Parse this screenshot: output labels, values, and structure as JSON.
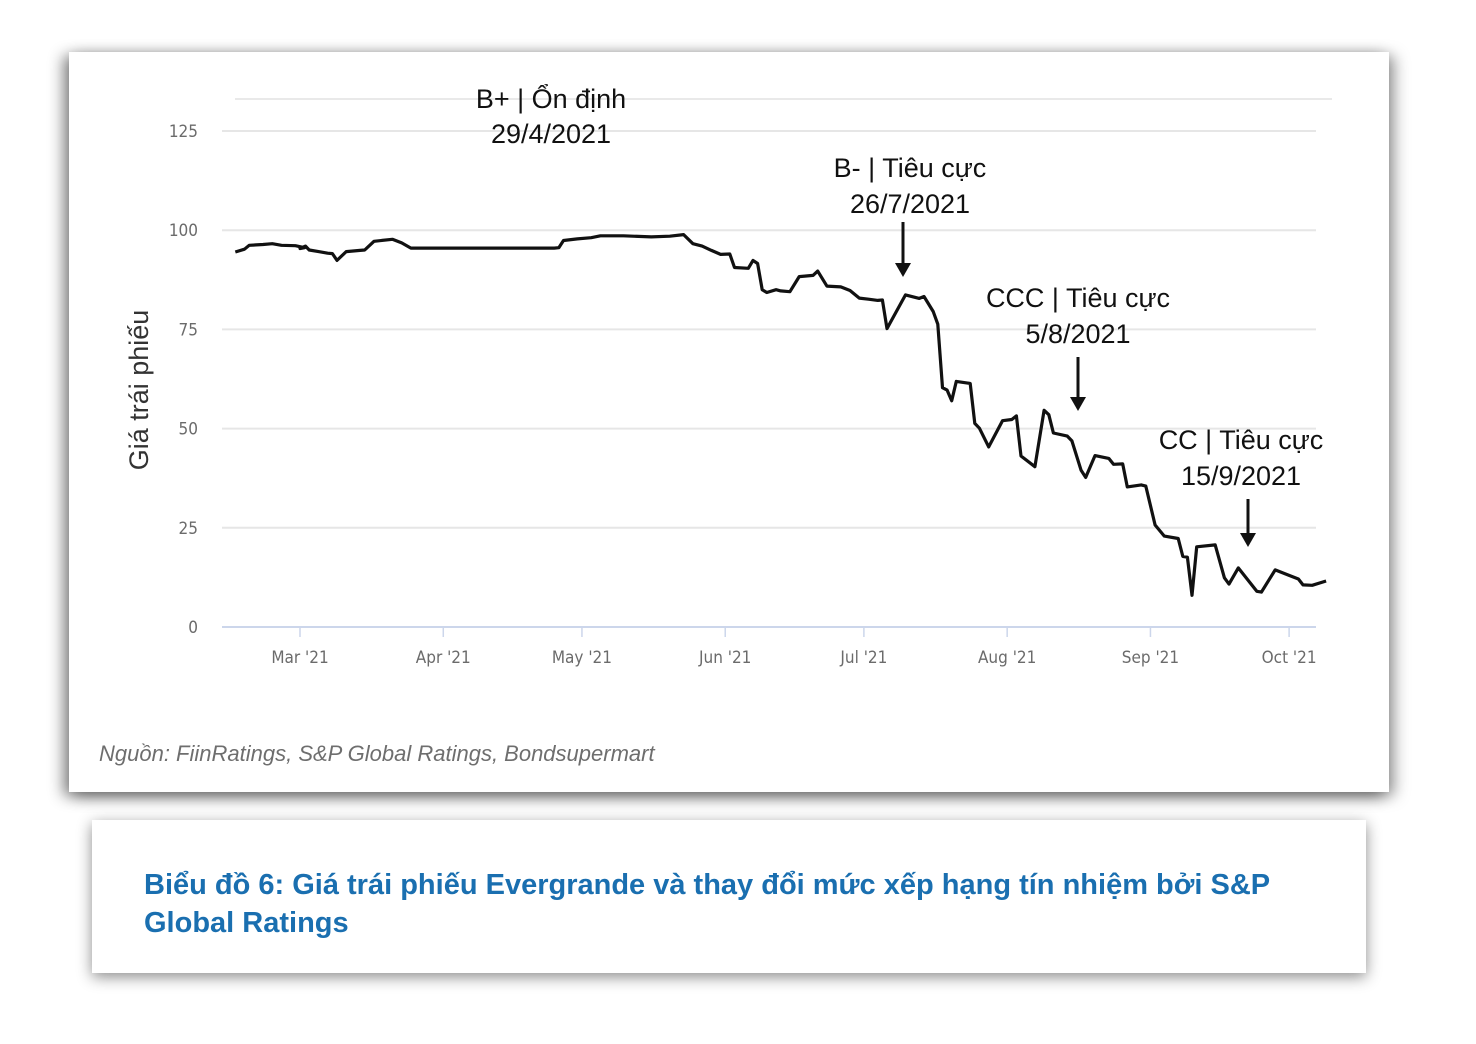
{
  "chart_data": {
    "type": "line",
    "title": "",
    "xlabel": "",
    "ylabel": "Giá trái phiếu",
    "ylim": [
      0,
      125
    ],
    "yticks": [
      0,
      25,
      50,
      75,
      100,
      125
    ],
    "ytick_labels": [
      "0",
      "25",
      "50",
      "75",
      "100",
      "125"
    ],
    "x_unit": "days since 2021-03-01",
    "xlim": [
      -14,
      217
    ],
    "xticks": [
      {
        "label": "Mar '21",
        "day": 0
      },
      {
        "label": "Apr '21",
        "day": 31
      },
      {
        "label": "May '21",
        "day": 61
      },
      {
        "label": "Jun '21",
        "day": 92
      },
      {
        "label": "Jul '21",
        "day": 122
      },
      {
        "label": "Aug '21",
        "day": 153
      },
      {
        "label": "Sep '21",
        "day": 184
      },
      {
        "label": "Oct '21",
        "day": 214
      }
    ],
    "grid": true,
    "legend": "none",
    "series": [
      {
        "name": "Giá trái phiếu Evergrande",
        "color": "#111111",
        "points": [
          [
            -14,
            94.5
          ],
          [
            -12,
            95.2
          ],
          [
            -11,
            96.2
          ],
          [
            -8,
            96.4
          ],
          [
            -6,
            96.6
          ],
          [
            -4,
            96.2
          ],
          [
            -1,
            96.1
          ],
          [
            1,
            95.6
          ],
          [
            0,
            95.4
          ],
          [
            1.2,
            96.0
          ],
          [
            2,
            95.0
          ],
          [
            4,
            94.6
          ],
          [
            6,
            94.2
          ],
          [
            7,
            94.1
          ],
          [
            8,
            92.4
          ],
          [
            10,
            94.6
          ],
          [
            13,
            94.9
          ],
          [
            14,
            95.0
          ],
          [
            16,
            97.2
          ],
          [
            20,
            97.7
          ],
          [
            22,
            96.8
          ],
          [
            24,
            95.5
          ],
          [
            30,
            95.5
          ],
          [
            40,
            95.5
          ],
          [
            50,
            95.5
          ],
          [
            55,
            95.5
          ],
          [
            56,
            95.6
          ],
          [
            57,
            97.4
          ],
          [
            60,
            97.8
          ],
          [
            63,
            98.1
          ],
          [
            65,
            98.6
          ],
          [
            70,
            98.6
          ],
          [
            76,
            98.3
          ],
          [
            80,
            98.5
          ],
          [
            83,
            98.9
          ],
          [
            85,
            96.6
          ],
          [
            87,
            96.0
          ],
          [
            89,
            94.9
          ],
          [
            91,
            93.9
          ],
          [
            93,
            94.0
          ],
          [
            94,
            90.6
          ],
          [
            97,
            90.4
          ],
          [
            98,
            92.4
          ],
          [
            99,
            91.6
          ],
          [
            100,
            85.0
          ],
          [
            101,
            84.3
          ],
          [
            103,
            85.0
          ],
          [
            104,
            84.7
          ],
          [
            106,
            84.5
          ],
          [
            108,
            88.3
          ],
          [
            111,
            88.6
          ],
          [
            112,
            89.7
          ],
          [
            114,
            85.9
          ],
          [
            117,
            85.7
          ],
          [
            119,
            84.8
          ],
          [
            121,
            82.9
          ],
          [
            123,
            82.6
          ],
          [
            125,
            82.3
          ],
          [
            126,
            82.4
          ],
          [
            127,
            75.2
          ],
          [
            131,
            83.7
          ],
          [
            134,
            82.8
          ],
          [
            135,
            83.3
          ],
          [
            137,
            79.5
          ],
          [
            138,
            76.3
          ],
          [
            139,
            60.3
          ],
          [
            140,
            59.7
          ],
          [
            141,
            57.0
          ],
          [
            142,
            61.9
          ],
          [
            145,
            61.4
          ],
          [
            146,
            51.3
          ],
          [
            147,
            50.1
          ],
          [
            149,
            45.4
          ],
          [
            152,
            52.0
          ],
          [
            154,
            52.3
          ],
          [
            155,
            53.2
          ],
          [
            156,
            43.1
          ],
          [
            159,
            40.4
          ],
          [
            161,
            54.6
          ],
          [
            162,
            53.5
          ],
          [
            163,
            48.9
          ],
          [
            166,
            48.1
          ],
          [
            167,
            46.9
          ],
          [
            169,
            39.5
          ],
          [
            170,
            37.7
          ],
          [
            172,
            43.2
          ],
          [
            175,
            42.5
          ],
          [
            176,
            41.0
          ],
          [
            178,
            41.1
          ],
          [
            179,
            35.3
          ],
          [
            182,
            35.8
          ],
          [
            183,
            35.5
          ],
          [
            185,
            25.7
          ],
          [
            187,
            22.9
          ],
          [
            190,
            22.3
          ],
          [
            191,
            17.8
          ],
          [
            192,
            17.6
          ],
          [
            193,
            8.0
          ],
          [
            194,
            20.2
          ],
          [
            198,
            20.7
          ],
          [
            200,
            12.4
          ],
          [
            201,
            10.8
          ],
          [
            203,
            14.9
          ],
          [
            207,
            9.0
          ],
          [
            208,
            8.8
          ],
          [
            211,
            14.4
          ],
          [
            214,
            13.0
          ],
          [
            216,
            12.1
          ],
          [
            217,
            10.6
          ],
          [
            219,
            10.5
          ],
          [
            222,
            11.6
          ]
        ]
      }
    ],
    "annotations": [
      {
        "line1": "B+ | Ổn định",
        "line2": "29/4/2021",
        "arrow": false
      },
      {
        "line1": "B- | Tiêu cực",
        "line2": "26/7/2021",
        "arrow": true,
        "arrow_day": 130
      },
      {
        "line1": "CCC | Tiêu cực",
        "line2": "5/8/2021",
        "arrow": true,
        "arrow_day": 168
      },
      {
        "line1": "CC | Tiêu cực",
        "line2": "15/9/2021",
        "arrow": true,
        "arrow_day": 205
      }
    ]
  },
  "source": "Nguồn: FiinRatings, S&P Global Ratings, Bondsupermart",
  "caption": "Biểu đồ 6: Giá trái phiếu Evergrande và thay đổi mức xếp hạng tín nhiệm bởi S&P Global Ratings"
}
